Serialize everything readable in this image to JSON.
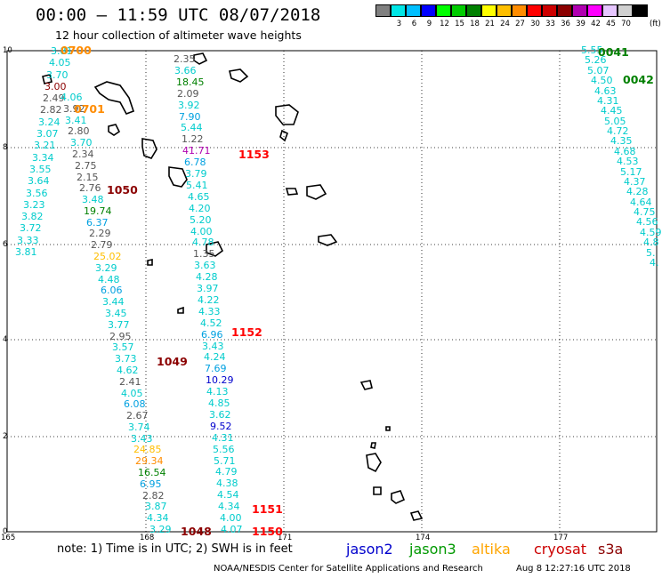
{
  "header": {
    "title": "00:00 — 11:59 UTC 08/07/2018",
    "subtitle": "12 hour collection of altimeter wave heights"
  },
  "legend": {
    "colors": [
      "#808080",
      "#00e6e6",
      "#00bfff",
      "#0000ff",
      "#00ff00",
      "#00cc00",
      "#008000",
      "#ffff00",
      "#ffbf00",
      "#ff8c00",
      "#ff0000",
      "#cc0000",
      "#8b0000",
      "#b000b0",
      "#ff00ff",
      "#e6c6ff",
      "#d0d0d0",
      "#000000"
    ],
    "labels": [
      "3",
      "6",
      "9",
      "12",
      "15",
      "18",
      "21",
      "24",
      "27",
      "30",
      "33",
      "36",
      "39",
      "42",
      "45",
      "70"
    ],
    "unit": "(ft)"
  },
  "axes": {
    "y_ticks": [
      "10",
      "8",
      "6",
      "4",
      "2",
      "0"
    ],
    "x_ticks": [
      "165",
      "168",
      "171",
      "174",
      "177"
    ]
  },
  "passes": [
    {
      "label": "0700",
      "color": "#ff8c00"
    },
    {
      "label": "0701",
      "color": "#ff8c00"
    },
    {
      "label": "1050",
      "color": "#8b0000"
    },
    {
      "label": "1153",
      "color": "#ff0000"
    },
    {
      "label": "1152",
      "color": "#ff0000"
    },
    {
      "label": "1049",
      "color": "#8b0000"
    },
    {
      "label": "1048",
      "color": "#8b0000"
    },
    {
      "label": "1151",
      "color": "#ff0000"
    },
    {
      "label": "1150",
      "color": "#ff0000"
    },
    {
      "label": "0041",
      "color": "#008000"
    },
    {
      "label": "0042",
      "color": "#008000"
    }
  ],
  "track_a": [
    {
      "v": "3.81",
      "c": "#00cccc"
    },
    {
      "v": "4.05",
      "c": "#00cccc"
    },
    {
      "v": "3.70",
      "c": "#00cccc"
    },
    {
      "v": "3.00",
      "c": "#8b0000"
    },
    {
      "v": "2.49",
      "c": "#555555"
    },
    {
      "v": "2.82",
      "c": "#555555"
    },
    {
      "v": "3.24",
      "c": "#00cccc"
    },
    {
      "v": "3.07",
      "c": "#00cccc"
    },
    {
      "v": "3.21",
      "c": "#00cccc"
    },
    {
      "v": "3.34",
      "c": "#00cccc"
    },
    {
      "v": "3.55",
      "c": "#00cccc"
    },
    {
      "v": "3.64",
      "c": "#00cccc"
    },
    {
      "v": "3.56",
      "c": "#00cccc"
    },
    {
      "v": "3.23",
      "c": "#00cccc"
    },
    {
      "v": "3.82",
      "c": "#00cccc"
    },
    {
      "v": "3.72",
      "c": "#00cccc"
    },
    {
      "v": "3.33",
      "c": "#00cccc"
    },
    {
      "v": "3.81",
      "c": "#00cccc"
    }
  ],
  "track_b": [
    {
      "v": "4.06",
      "c": "#00cccc"
    },
    {
      "v": "3.92",
      "c": "#555555"
    },
    {
      "v": "3.41",
      "c": "#00cccc"
    },
    {
      "v": "2.80",
      "c": "#555555"
    },
    {
      "v": "3.70",
      "c": "#00cccc"
    },
    {
      "v": "2.34",
      "c": "#555555"
    },
    {
      "v": "2.75",
      "c": "#555555"
    },
    {
      "v": "2.15",
      "c": "#555555"
    },
    {
      "v": "2.76",
      "c": "#555555"
    },
    {
      "v": "3.48",
      "c": "#00cccc"
    },
    {
      "v": "19.74",
      "c": "#008000"
    },
    {
      "v": "6.37",
      "c": "#00a0e0"
    },
    {
      "v": "2.29",
      "c": "#555555"
    },
    {
      "v": "2.79",
      "c": "#555555"
    },
    {
      "v": "25.02",
      "c": "#ffbf00"
    },
    {
      "v": "3.29",
      "c": "#00cccc"
    },
    {
      "v": "4.48",
      "c": "#00cccc"
    },
    {
      "v": "6.06",
      "c": "#00a0e0"
    },
    {
      "v": "3.44",
      "c": "#00cccc"
    },
    {
      "v": "3.45",
      "c": "#00cccc"
    },
    {
      "v": "3.77",
      "c": "#00cccc"
    },
    {
      "v": "2.95",
      "c": "#555555"
    },
    {
      "v": "3.57",
      "c": "#00cccc"
    },
    {
      "v": "3.73",
      "c": "#00cccc"
    },
    {
      "v": "4.62",
      "c": "#00cccc"
    },
    {
      "v": "2.41",
      "c": "#555555"
    },
    {
      "v": "4.05",
      "c": "#00cccc"
    },
    {
      "v": "6.08",
      "c": "#00a0e0"
    },
    {
      "v": "2.67",
      "c": "#555555"
    },
    {
      "v": "3.74",
      "c": "#00cccc"
    },
    {
      "v": "3.43",
      "c": "#00cccc"
    },
    {
      "v": "24.85",
      "c": "#ffbf00"
    },
    {
      "v": "29.34",
      "c": "#ff8c00"
    },
    {
      "v": "16.54",
      "c": "#008000"
    },
    {
      "v": "6.95",
      "c": "#00a0e0"
    },
    {
      "v": "2.82",
      "c": "#555555"
    },
    {
      "v": "3.87",
      "c": "#00cccc"
    },
    {
      "v": "4.34",
      "c": "#00cccc"
    },
    {
      "v": "3.29",
      "c": "#00cccc"
    }
  ],
  "track_c": [
    {
      "v": "2.35",
      "c": "#555555"
    },
    {
      "v": "3.66",
      "c": "#00cccc"
    },
    {
      "v": "18.45",
      "c": "#008000"
    },
    {
      "v": "2.09",
      "c": "#555555"
    },
    {
      "v": "3.92",
      "c": "#00cccc"
    },
    {
      "v": "7.90",
      "c": "#00a0e0"
    },
    {
      "v": "5.44",
      "c": "#00cccc"
    },
    {
      "v": "1.22",
      "c": "#555555"
    },
    {
      "v": "41.71",
      "c": "#b000b0"
    },
    {
      "v": "6.78",
      "c": "#00a0e0"
    },
    {
      "v": "3.79",
      "c": "#00cccc"
    },
    {
      "v": "5.41",
      "c": "#00cccc"
    },
    {
      "v": "4.65",
      "c": "#00cccc"
    },
    {
      "v": "4.20",
      "c": "#00cccc"
    },
    {
      "v": "5.20",
      "c": "#00cccc"
    },
    {
      "v": "4.00",
      "c": "#00cccc"
    },
    {
      "v": "4.78",
      "c": "#00cccc"
    },
    {
      "v": "1.35",
      "c": "#555555"
    },
    {
      "v": "3.63",
      "c": "#00cccc"
    },
    {
      "v": "4.28",
      "c": "#00cccc"
    },
    {
      "v": "3.97",
      "c": "#00cccc"
    },
    {
      "v": "4.22",
      "c": "#00cccc"
    },
    {
      "v": "4.33",
      "c": "#00cccc"
    },
    {
      "v": "4.52",
      "c": "#00cccc"
    },
    {
      "v": "6.96",
      "c": "#00a0e0"
    },
    {
      "v": "3.43",
      "c": "#00cccc"
    },
    {
      "v": "4.24",
      "c": "#00cccc"
    },
    {
      "v": "7.69",
      "c": "#00a0e0"
    },
    {
      "v": "10.29",
      "c": "#0000cc"
    },
    {
      "v": "4.13",
      "c": "#00cccc"
    },
    {
      "v": "4.85",
      "c": "#00cccc"
    },
    {
      "v": "3.62",
      "c": "#00cccc"
    },
    {
      "v": "9.52",
      "c": "#0000cc"
    },
    {
      "v": "4.31",
      "c": "#00cccc"
    },
    {
      "v": "5.56",
      "c": "#00cccc"
    },
    {
      "v": "5.71",
      "c": "#00cccc"
    },
    {
      "v": "4.79",
      "c": "#00cccc"
    },
    {
      "v": "4.38",
      "c": "#00cccc"
    },
    {
      "v": "4.54",
      "c": "#00cccc"
    },
    {
      "v": "4.34",
      "c": "#00cccc"
    },
    {
      "v": "4.00",
      "c": "#00cccc"
    },
    {
      "v": "4.07",
      "c": "#00cccc"
    }
  ],
  "track_d": [
    {
      "v": "5.55",
      "c": "#00cccc"
    },
    {
      "v": "5.26",
      "c": "#00cccc"
    },
    {
      "v": "5.07",
      "c": "#00cccc"
    },
    {
      "v": "4.50",
      "c": "#00cccc"
    },
    {
      "v": "4.63",
      "c": "#00cccc"
    },
    {
      "v": "4.31",
      "c": "#00cccc"
    },
    {
      "v": "4.45",
      "c": "#00cccc"
    },
    {
      "v": "5.05",
      "c": "#00cccc"
    },
    {
      "v": "4.72",
      "c": "#00cccc"
    },
    {
      "v": "4.35",
      "c": "#00cccc"
    },
    {
      "v": "4.68",
      "c": "#00cccc"
    },
    {
      "v": "4.53",
      "c": "#00cccc"
    },
    {
      "v": "5.17",
      "c": "#00cccc"
    },
    {
      "v": "4.37",
      "c": "#00cccc"
    },
    {
      "v": "4.28",
      "c": "#00cccc"
    },
    {
      "v": "4.64",
      "c": "#00cccc"
    },
    {
      "v": "4.75",
      "c": "#00cccc"
    },
    {
      "v": "4.56",
      "c": "#00cccc"
    },
    {
      "v": "4.59",
      "c": "#00cccc"
    },
    {
      "v": "4.8",
      "c": "#00cccc"
    },
    {
      "v": "5.",
      "c": "#00cccc"
    },
    {
      "v": "4.",
      "c": "#00cccc"
    }
  ],
  "footer": {
    "note": "note:  1) Time is in UTC;  2) SWH is in feet",
    "satellites": [
      {
        "name": "jason2",
        "color": "#0000cc"
      },
      {
        "name": "jason3",
        "color": "#009900"
      },
      {
        "name": "altika",
        "color": "#ffa500"
      },
      {
        "name": "cryosat",
        "color": "#cc0000"
      },
      {
        "name": "s3a",
        "color": "#8b0000"
      }
    ],
    "credit": "NOAA/NESDIS Center for Satellite Applications and Research",
    "timestamp": "Aug  8 12:27:16 UTC 2018"
  }
}
